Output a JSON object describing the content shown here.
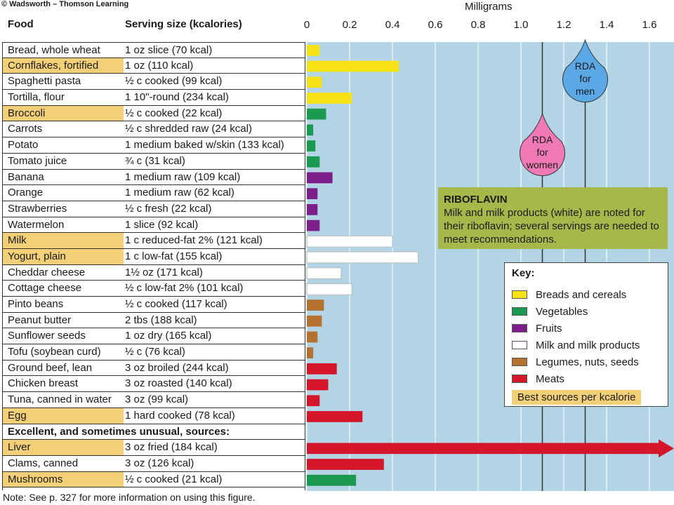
{
  "copyright": "© Wadsworth – Thomson Learning",
  "header": {
    "food": "Food",
    "serving": "Serving size (kcalories)"
  },
  "note": "Note: See p. 327 for more information on using this figure.",
  "riboflavin": {
    "title": "RIBOFLAVIN",
    "text": "Milk and milk products (white) are noted for their riboflavin; several servings are needed to meet recommendations."
  },
  "key": {
    "title": "Key:",
    "items": [
      {
        "label": "Breads and cereals",
        "color": "#f7e216"
      },
      {
        "label": "Vegetables",
        "color": "#1a9a50"
      },
      {
        "label": "Fruits",
        "color": "#7c1f8a"
      },
      {
        "label": "Milk and milk products",
        "color": "#ffffff"
      },
      {
        "label": "Legumes, nuts, seeds",
        "color": "#b5712f"
      },
      {
        "label": "Meats",
        "color": "#d4152a"
      }
    ],
    "best": "Best sources per kcalorie"
  },
  "rda": {
    "women": {
      "lines": [
        "RDA",
        "for",
        "women"
      ],
      "value": 1.1,
      "color": "#f07ab5"
    },
    "men": {
      "lines": [
        "RDA",
        "for",
        "men"
      ],
      "value": 1.3,
      "color": "#5aa9e6"
    }
  },
  "colors": {
    "plot_bg": "#b2d4e4",
    "best_source": "#f3cf78",
    "breads": "#f7e216",
    "vegetables": "#1a9a50",
    "fruits": "#7c1f8a",
    "milk": "#ffffff",
    "legumes": "#b5712f",
    "meats": "#d4152a"
  },
  "chart_data": {
    "type": "bar",
    "orientation": "horizontal",
    "xlabel": "Milligrams",
    "xlim": [
      0,
      1.7
    ],
    "xticks": [
      "0",
      "0.2",
      "0.4",
      "0.6",
      "0.8",
      "1.0",
      "1.2",
      "1.4",
      "1.6"
    ],
    "xtick_values": [
      0,
      0.2,
      0.4,
      0.6,
      0.8,
      1.0,
      1.2,
      1.4,
      1.6
    ],
    "vertical_lines": [
      1.1,
      1.3
    ],
    "section_heading": "Excellent, and sometimes unusual, sources:",
    "rows": [
      {
        "food": "Bread, whole wheat",
        "serving": "1 oz slice (70 kcal)",
        "value": 0.06,
        "group": "breads",
        "best": false
      },
      {
        "food": "Cornflakes, fortified",
        "serving": "1 oz (110 kcal)",
        "value": 0.43,
        "group": "breads",
        "best": true
      },
      {
        "food": "Spaghetti pasta",
        "serving": "½ c cooked (99 kcal)",
        "value": 0.07,
        "group": "breads",
        "best": false
      },
      {
        "food": "Tortilla, flour",
        "serving": "1 10\"-round (234 kcal)",
        "value": 0.21,
        "group": "breads",
        "best": false
      },
      {
        "food": "Broccoli",
        "serving": "½ c cooked (22 kcal)",
        "value": 0.09,
        "group": "vegetables",
        "best": true
      },
      {
        "food": "Carrots",
        "serving": "½ c shredded raw (24 kcal)",
        "value": 0.03,
        "group": "vegetables",
        "best": false
      },
      {
        "food": "Potato",
        "serving": "1 medium baked w/skin (133 kcal)",
        "value": 0.04,
        "group": "vegetables",
        "best": false
      },
      {
        "food": "Tomato juice",
        "serving": "¾ c (31 kcal)",
        "value": 0.06,
        "group": "vegetables",
        "best": false
      },
      {
        "food": "Banana",
        "serving": "1 medium raw (109 kcal)",
        "value": 0.12,
        "group": "fruits",
        "best": false
      },
      {
        "food": "Orange",
        "serving": "1 medium raw (62 kcal)",
        "value": 0.05,
        "group": "fruits",
        "best": false
      },
      {
        "food": "Strawberries",
        "serving": "½ c fresh (22 kcal)",
        "value": 0.05,
        "group": "fruits",
        "best": false
      },
      {
        "food": "Watermelon",
        "serving": "1 slice (92 kcal)",
        "value": 0.06,
        "group": "fruits",
        "best": false
      },
      {
        "food": "Milk",
        "serving": "1 c reduced-fat 2% (121 kcal)",
        "value": 0.4,
        "group": "milk",
        "best": true
      },
      {
        "food": "Yogurt, plain",
        "serving": "1 c low-fat (155 kcal)",
        "value": 0.52,
        "group": "milk",
        "best": true
      },
      {
        "food": "Cheddar cheese",
        "serving": "1½ oz (171 kcal)",
        "value": 0.16,
        "group": "milk",
        "best": false
      },
      {
        "food": "Cottage cheese",
        "serving": "½ c low-fat 2% (101 kcal)",
        "value": 0.21,
        "group": "milk",
        "best": false
      },
      {
        "food": "Pinto beans",
        "serving": "½ c cooked (117 kcal)",
        "value": 0.08,
        "group": "legumes",
        "best": false
      },
      {
        "food": "Peanut butter",
        "serving": "2 tbs (188 kcal)",
        "value": 0.07,
        "group": "legumes",
        "best": false
      },
      {
        "food": "Sunflower seeds",
        "serving": "1 oz dry (165 kcal)",
        "value": 0.05,
        "group": "legumes",
        "best": false
      },
      {
        "food": "Tofu (soybean curd)",
        "serving": "½ c (76 kcal)",
        "value": 0.03,
        "group": "legumes",
        "best": false
      },
      {
        "food": "Ground beef, lean",
        "serving": "3 oz broiled (244 kcal)",
        "value": 0.14,
        "group": "meats",
        "best": false
      },
      {
        "food": "Chicken breast",
        "serving": "3 oz roasted (140 kcal)",
        "value": 0.1,
        "group": "meats",
        "best": false
      },
      {
        "food": "Tuna, canned in water",
        "serving": "3 oz (99 kcal)",
        "value": 0.06,
        "group": "meats",
        "best": false
      },
      {
        "food": "Egg",
        "serving": "1 hard cooked (78 kcal)",
        "value": 0.26,
        "group": "meats",
        "best": true
      },
      {
        "food": "Liver",
        "serving": "3 oz fried (184 kcal)",
        "value": 1.75,
        "group": "meats",
        "best": true,
        "off_scale": true
      },
      {
        "food": "Clams, canned",
        "serving": "3 oz (126 kcal)",
        "value": 0.36,
        "group": "meats",
        "best": false
      },
      {
        "food": "Mushrooms",
        "serving": "½ c cooked (21 kcal)",
        "value": 0.23,
        "group": "vegetables",
        "best": true
      }
    ]
  }
}
